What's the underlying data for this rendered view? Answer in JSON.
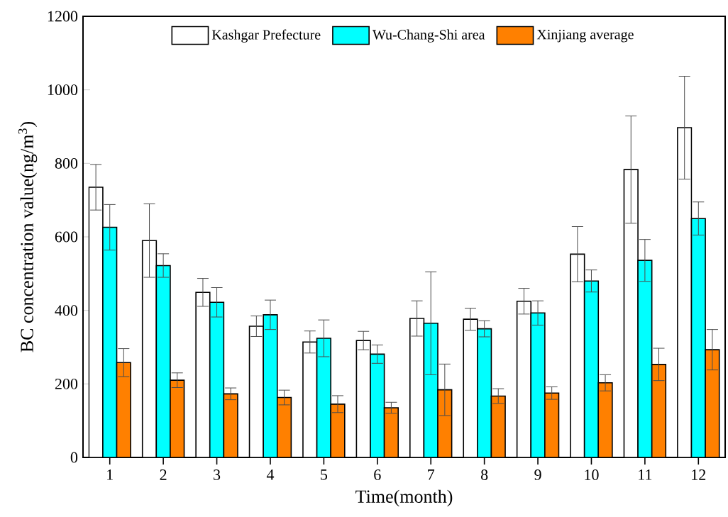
{
  "chart_data": {
    "type": "bar",
    "xlabel": "Time(month)",
    "ylabel": "BC concentration value(ng/m$^{3}$)",
    "categories": [
      "1",
      "2",
      "3",
      "4",
      "5",
      "6",
      "7",
      "8",
      "9",
      "10",
      "11",
      "12"
    ],
    "series": [
      {
        "name": "Kashgar Prefecture",
        "color": "#ffffff",
        "values": [
          735,
          590,
          449,
          357,
          314,
          318,
          378,
          376,
          425,
          553,
          783,
          897
        ],
        "errors": [
          62,
          100,
          38,
          28,
          30,
          25,
          48,
          30,
          35,
          75,
          146,
          140
        ]
      },
      {
        "name": "Wu-Chang-Shi area",
        "color": "#00ffff",
        "values": [
          626,
          522,
          422,
          388,
          324,
          281,
          365,
          350,
          393,
          480,
          536,
          650
        ],
        "errors": [
          62,
          32,
          40,
          40,
          50,
          25,
          140,
          22,
          33,
          30,
          57,
          45
        ]
      },
      {
        "name": "Xinjiang average",
        "color": "#ff8000",
        "values": [
          258,
          210,
          173,
          163,
          145,
          135,
          184,
          167,
          175,
          203,
          253,
          293
        ],
        "errors": [
          38,
          20,
          16,
          20,
          23,
          15,
          70,
          20,
          17,
          22,
          44,
          55
        ]
      }
    ],
    "ylim": [
      0,
      1200
    ],
    "yticks": [
      0,
      200,
      400,
      600,
      800,
      1000,
      1200
    ],
    "legend": "top",
    "grid": false
  }
}
